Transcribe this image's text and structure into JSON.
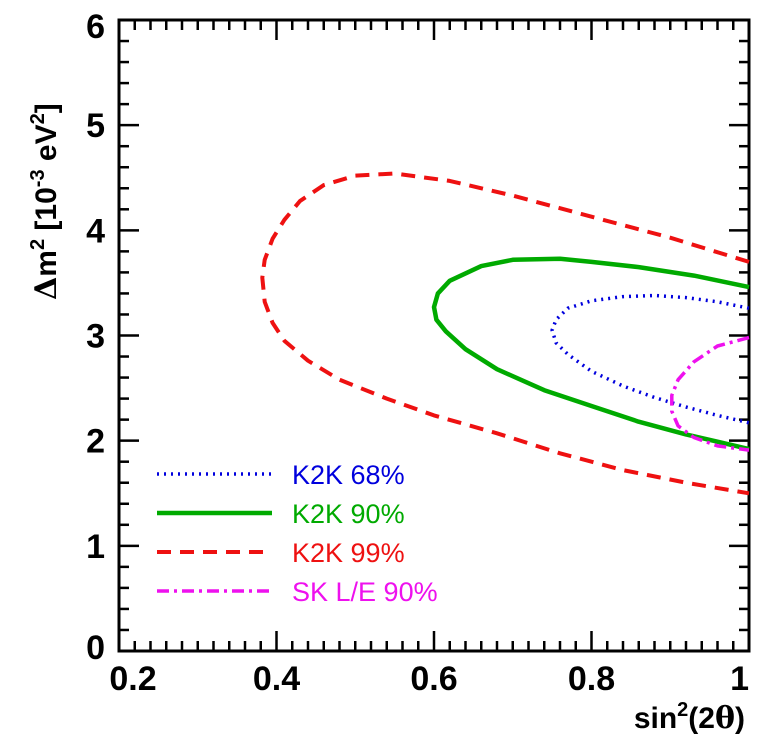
{
  "chart_data": {
    "type": "line",
    "title": "",
    "xlabel_base": "sin",
    "xlabel_sup": "2",
    "xlabel_rest": "(2",
    "xlabel_theta": "θ",
    "xlabel_close": ")",
    "ylabel_delta": "Δ",
    "ylabel_m": "m",
    "ylabel_msup": "2",
    "ylabel_units1": " [10",
    "ylabel_exp": "-3",
    "ylabel_units2": " eV",
    "ylabel_evsup": "2",
    "ylabel_units3": "]",
    "xlim": [
      0.2,
      1.0
    ],
    "ylim": [
      0,
      6
    ],
    "x_ticks": [
      0.2,
      0.4,
      0.6,
      0.8,
      1.0
    ],
    "x_tick_labels": [
      "0.2",
      "0.4",
      "0.6",
      "0.8",
      "1"
    ],
    "y_ticks": [
      0,
      1,
      2,
      3,
      4,
      5,
      6
    ],
    "y_tick_labels": [
      "0",
      "1",
      "2",
      "3",
      "4",
      "5",
      "6"
    ],
    "legend_position": "bottom-left",
    "series": [
      {
        "name": "K2K 68%",
        "color": "#0000dd",
        "style": "dotted",
        "x": [
          1.0,
          0.96,
          0.92,
          0.88,
          0.84,
          0.8,
          0.77,
          0.755,
          0.75,
          0.755,
          0.77,
          0.8,
          0.84,
          0.88,
          0.92,
          0.96,
          1.0
        ],
        "y": [
          3.26,
          3.32,
          3.36,
          3.38,
          3.37,
          3.33,
          3.26,
          3.15,
          3.05,
          2.93,
          2.82,
          2.66,
          2.52,
          2.41,
          2.32,
          2.24,
          2.17
        ]
      },
      {
        "name": "K2K 90%",
        "color": "#00aa00",
        "style": "solid",
        "x": [
          1.0,
          0.93,
          0.86,
          0.8,
          0.76,
          0.7,
          0.66,
          0.62,
          0.605,
          0.6,
          0.603,
          0.615,
          0.64,
          0.68,
          0.74,
          0.8,
          0.86,
          0.92,
          0.96,
          1.0
        ],
        "y": [
          3.46,
          3.57,
          3.65,
          3.7,
          3.73,
          3.72,
          3.66,
          3.52,
          3.4,
          3.27,
          3.15,
          3.04,
          2.87,
          2.68,
          2.48,
          2.33,
          2.18,
          2.06,
          1.99,
          1.92
        ]
      },
      {
        "name": "K2K 99%",
        "color": "#ee1111",
        "style": "dashed",
        "x": [
          1.0,
          0.9,
          0.8,
          0.7,
          0.62,
          0.55,
          0.5,
          0.46,
          0.43,
          0.41,
          0.395,
          0.385,
          0.382,
          0.385,
          0.395,
          0.41,
          0.44,
          0.48,
          0.54,
          0.6,
          0.68,
          0.76,
          0.84,
          0.92,
          1.0
        ],
        "y": [
          3.7,
          3.93,
          4.13,
          4.33,
          4.47,
          4.54,
          4.52,
          4.43,
          4.28,
          4.1,
          3.92,
          3.72,
          3.55,
          3.32,
          3.12,
          2.95,
          2.76,
          2.58,
          2.4,
          2.24,
          2.07,
          1.88,
          1.72,
          1.6,
          1.5
        ]
      },
      {
        "name": "SK L/E 90%",
        "color": "#ee11ee",
        "style": "dashdot",
        "x": [
          1.0,
          0.96,
          0.93,
          0.91,
          0.902,
          0.902,
          0.91,
          0.93,
          0.96,
          1.0
        ],
        "y": [
          2.98,
          2.9,
          2.75,
          2.58,
          2.43,
          2.28,
          2.14,
          2.03,
          1.95,
          1.91
        ]
      }
    ]
  }
}
